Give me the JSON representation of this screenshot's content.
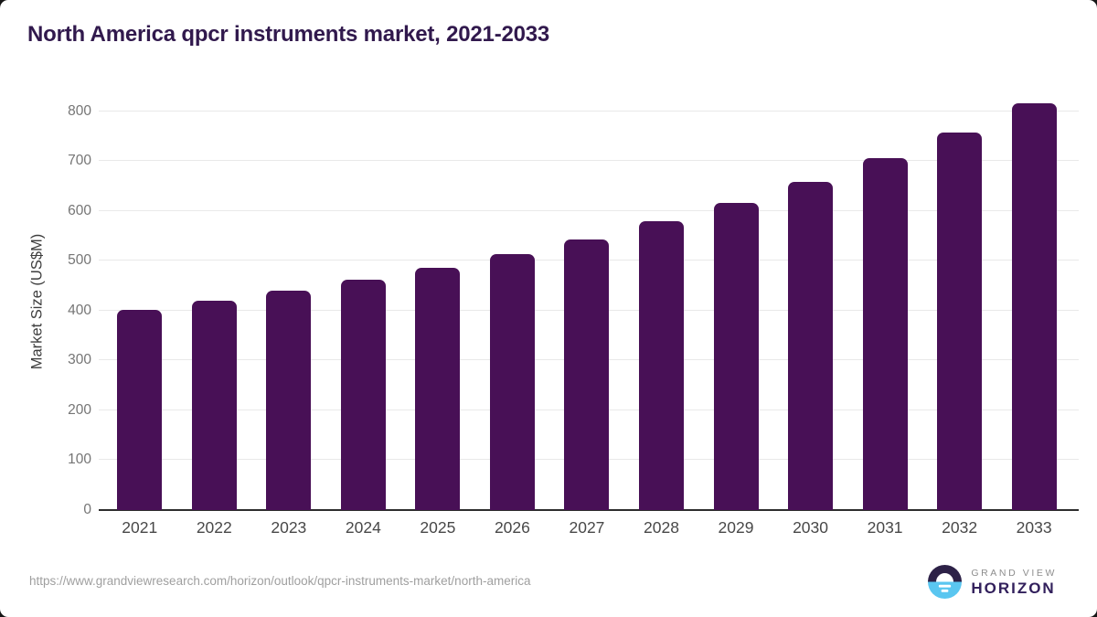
{
  "title": "North America qpcr instruments market, 2021-2033",
  "footer": {
    "url": "https://www.grandviewresearch.com/horizon/outlook/qpcr-instruments-market/north-america",
    "logo": {
      "line1": "GRAND VIEW",
      "line2": "HORIZON"
    }
  },
  "colors": {
    "bar": "#481056",
    "title": "#31194d",
    "gridline": "#e9e9e9",
    "axis_line": "#2d2d2d",
    "y_tick_text": "#757575",
    "x_tick_text": "#484848",
    "url_text": "#9f9f9f",
    "logo_blue": "#5ac6f0",
    "logo_dark": "#2d2147"
  },
  "chart_data": {
    "type": "bar",
    "title": "North America qpcr instruments market, 2021-2033",
    "categories": [
      "2021",
      "2022",
      "2023",
      "2024",
      "2025",
      "2026",
      "2027",
      "2028",
      "2029",
      "2030",
      "2031",
      "2032",
      "2033"
    ],
    "values": [
      402,
      420,
      440,
      462,
      486,
      513,
      543,
      579,
      617,
      658,
      706,
      758,
      817
    ],
    "xlabel": "",
    "ylabel": "Market Size (US$M)",
    "ylim": [
      0,
      840
    ],
    "yticks": [
      0,
      100,
      200,
      300,
      400,
      500,
      600,
      700,
      800
    ],
    "grid": true,
    "legend": false,
    "bar_color": "#481056"
  }
}
